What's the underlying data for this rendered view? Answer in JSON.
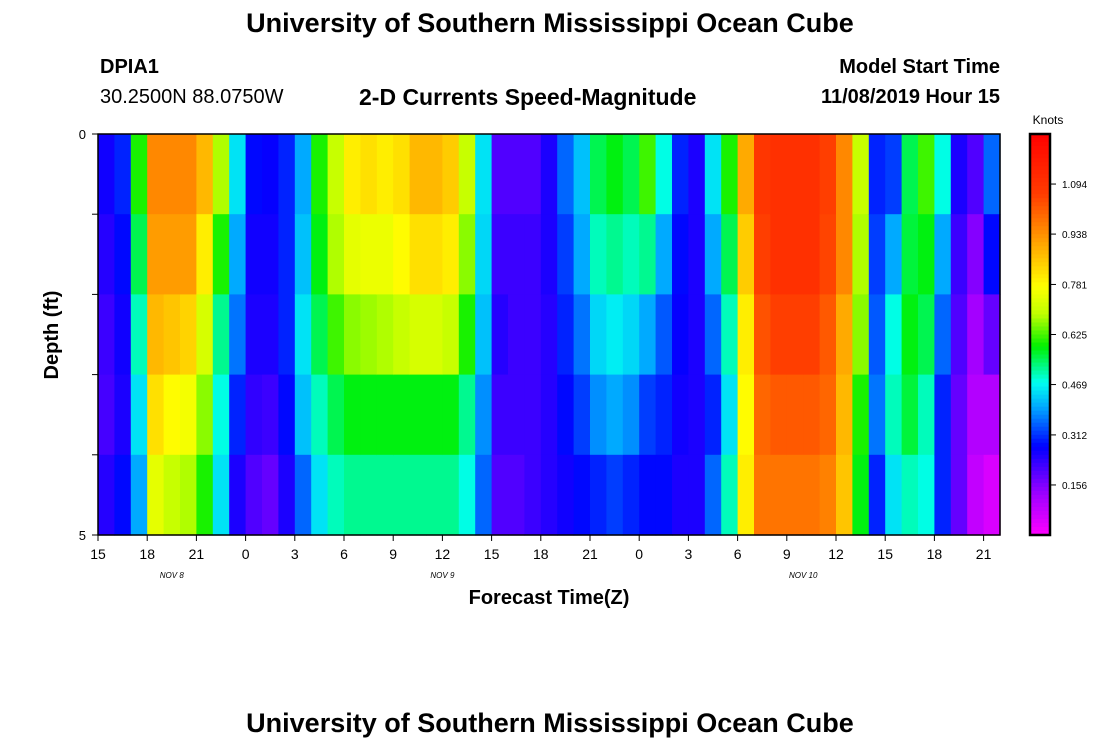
{
  "header": {
    "title": "University of Southern Mississippi Ocean Cube",
    "station_id": "DPIA1",
    "station_location": "30.2500N 88.0750W",
    "model_label": "Model Start Time",
    "model_time": "11/08/2019 Hour 15"
  },
  "footer": {
    "title": "University of Southern Mississippi Ocean Cube"
  },
  "chart_data": {
    "type": "heatmap",
    "title": "2-D Currents Speed-Magnitude",
    "xlabel": "Forecast Time(Z)",
    "ylabel": "Depth (ft)",
    "ylim": [
      0,
      5
    ],
    "y_tick_labels": [
      "0",
      "5"
    ],
    "x_tick_labels": [
      "15",
      "18",
      "21",
      "0",
      "3",
      "6",
      "9",
      "12",
      "15",
      "18",
      "21",
      "0",
      "3",
      "6",
      "9",
      "12",
      "15",
      "18",
      "21"
    ],
    "date_labels": [
      {
        "text": "NOV  8",
        "hour_index": 4.5
      },
      {
        "text": "NOV  9",
        "hour_index": 21
      },
      {
        "text": "NOV  10",
        "hour_index": 43
      }
    ],
    "hours": 55,
    "depth_layers": 5,
    "colorbar": {
      "label": "Knots",
      "min": 0.0,
      "max": 1.25,
      "ticks": [
        0.156,
        0.312,
        0.469,
        0.625,
        0.781,
        0.938,
        1.094
      ],
      "tick_labels": [
        "0.156",
        "0.312",
        "0.469",
        "0.625",
        "0.781",
        "0.938",
        "1.094"
      ]
    },
    "column_profiles": [
      [
        0.26,
        0.24,
        0.22,
        0.21,
        0.24
      ],
      [
        0.3,
        0.28,
        0.26,
        0.25,
        0.28
      ],
      [
        0.6,
        0.55,
        0.5,
        0.45,
        0.4
      ],
      [
        0.95,
        0.92,
        0.88,
        0.82,
        0.74
      ],
      [
        0.95,
        0.92,
        0.86,
        0.78,
        0.7
      ],
      [
        0.95,
        0.92,
        0.84,
        0.76,
        0.68
      ],
      [
        0.88,
        0.8,
        0.72,
        0.66,
        0.6
      ],
      [
        0.68,
        0.6,
        0.52,
        0.48,
        0.45
      ],
      [
        0.45,
        0.4,
        0.36,
        0.3,
        0.25
      ],
      [
        0.28,
        0.26,
        0.25,
        0.23,
        0.2
      ],
      [
        0.27,
        0.26,
        0.25,
        0.22,
        0.18
      ],
      [
        0.3,
        0.3,
        0.3,
        0.28,
        0.25
      ],
      [
        0.4,
        0.42,
        0.45,
        0.42,
        0.35
      ],
      [
        0.6,
        0.58,
        0.55,
        0.5,
        0.45
      ],
      [
        0.7,
        0.68,
        0.62,
        0.55,
        0.5
      ],
      [
        0.8,
        0.74,
        0.66,
        0.58,
        0.52
      ],
      [
        0.82,
        0.75,
        0.67,
        0.58,
        0.52
      ],
      [
        0.8,
        0.75,
        0.68,
        0.58,
        0.52
      ],
      [
        0.82,
        0.78,
        0.7,
        0.58,
        0.52
      ],
      [
        0.88,
        0.82,
        0.72,
        0.58,
        0.52
      ],
      [
        0.88,
        0.82,
        0.72,
        0.58,
        0.52
      ],
      [
        0.85,
        0.8,
        0.7,
        0.58,
        0.52
      ],
      [
        0.7,
        0.66,
        0.6,
        0.52,
        0.48
      ],
      [
        0.45,
        0.44,
        0.42,
        0.38,
        0.35
      ],
      [
        0.2,
        0.22,
        0.24,
        0.22,
        0.2
      ],
      [
        0.2,
        0.22,
        0.22,
        0.22,
        0.2
      ],
      [
        0.2,
        0.22,
        0.22,
        0.22,
        0.22
      ],
      [
        0.25,
        0.25,
        0.24,
        0.24,
        0.24
      ],
      [
        0.35,
        0.32,
        0.3,
        0.28,
        0.26
      ],
      [
        0.42,
        0.4,
        0.36,
        0.32,
        0.28
      ],
      [
        0.55,
        0.5,
        0.44,
        0.38,
        0.3
      ],
      [
        0.58,
        0.52,
        0.46,
        0.4,
        0.32
      ],
      [
        0.55,
        0.5,
        0.44,
        0.38,
        0.3
      ],
      [
        0.62,
        0.52,
        0.4,
        0.32,
        0.28
      ],
      [
        0.48,
        0.4,
        0.34,
        0.3,
        0.28
      ],
      [
        0.3,
        0.28,
        0.27,
        0.26,
        0.25
      ],
      [
        0.25,
        0.25,
        0.25,
        0.25,
        0.25
      ],
      [
        0.45,
        0.4,
        0.35,
        0.3,
        0.35
      ],
      [
        0.6,
        0.55,
        0.5,
        0.45,
        0.5
      ],
      [
        0.9,
        0.85,
        0.8,
        0.78,
        0.8
      ],
      [
        1.08,
        1.06,
        1.03,
        1.0,
        0.98
      ],
      [
        1.1,
        1.1,
        1.06,
        1.02,
        0.98
      ],
      [
        1.1,
        1.1,
        1.06,
        1.02,
        0.98
      ],
      [
        1.1,
        1.1,
        1.06,
        1.02,
        0.98
      ],
      [
        1.06,
        1.05,
        1.02,
        1.0,
        0.96
      ],
      [
        0.95,
        0.95,
        0.9,
        0.88,
        0.86
      ],
      [
        0.7,
        0.68,
        0.66,
        0.6,
        0.58
      ],
      [
        0.3,
        0.32,
        0.34,
        0.36,
        0.3
      ],
      [
        0.32,
        0.4,
        0.48,
        0.5,
        0.45
      ],
      [
        0.55,
        0.56,
        0.58,
        0.56,
        0.5
      ],
      [
        0.62,
        0.58,
        0.55,
        0.5,
        0.48
      ],
      [
        0.48,
        0.4,
        0.35,
        0.3,
        0.3
      ],
      [
        0.25,
        0.22,
        0.2,
        0.18,
        0.18
      ],
      [
        0.2,
        0.15,
        0.12,
        0.1,
        0.08
      ],
      [
        0.35,
        0.28,
        0.18,
        0.1,
        0.05
      ]
    ]
  }
}
